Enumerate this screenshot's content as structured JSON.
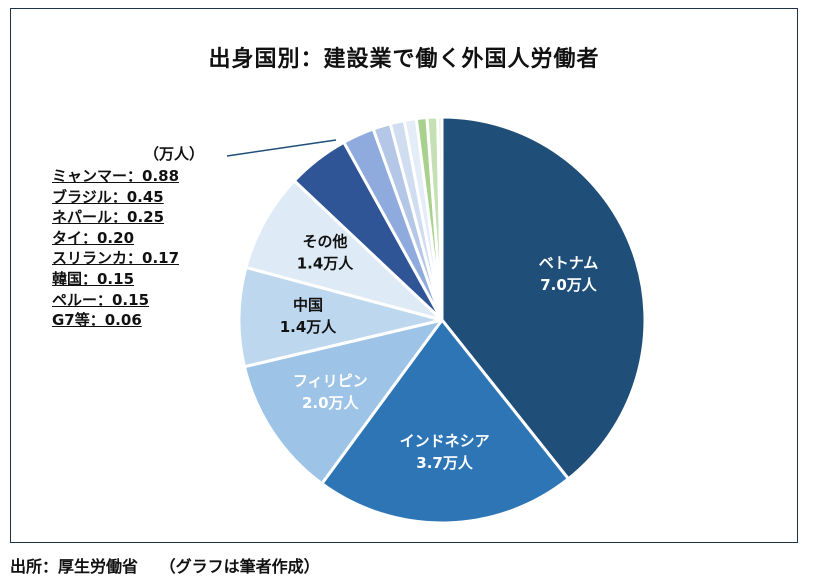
{
  "title": "出身国別：建設業で働く外国人労働者",
  "source": "出所：厚生労働省　 （グラフは筆者作成）",
  "chart_data": {
    "type": "pie",
    "unit": "（万人）",
    "slices": [
      {
        "name": "ベトナム",
        "value": 7.0,
        "label": "7.0万人",
        "color": "#1f4e79",
        "text_color": "#ffffff"
      },
      {
        "name": "インドネシア",
        "value": 3.7,
        "label": "3.7万人",
        "color": "#2e75b6",
        "text_color": "#ffffff"
      },
      {
        "name": "フィリピン",
        "value": 2.0,
        "label": "2.0万人",
        "color": "#9dc3e6",
        "text_color": "#ffffff"
      },
      {
        "name": "中国",
        "value": 1.4,
        "label": "1.4万人",
        "color": "#bdd7ee",
        "text_color": "#111111"
      },
      {
        "name": "その他",
        "value": 1.4,
        "label": "1.4万人",
        "color": "#deebf7",
        "text_color": "#111111"
      },
      {
        "name": "ミャンマー",
        "value": 0.88,
        "color": "#2f5597"
      },
      {
        "name": "ブラジル",
        "value": 0.45,
        "color": "#8faadc"
      },
      {
        "name": "ネパール",
        "value": 0.25,
        "color": "#b4c7e7"
      },
      {
        "name": "タイ",
        "value": 0.2,
        "color": "#d0dcf0"
      },
      {
        "name": "スリランカ",
        "value": 0.17,
        "color": "#e4ecf7"
      },
      {
        "name": "韓国",
        "value": 0.15,
        "color": "#a9d18e"
      },
      {
        "name": "ペルー",
        "value": 0.15,
        "color": "#c5e0b4"
      },
      {
        "name": "G7等",
        "value": 0.06,
        "color": "#e2f0d9"
      }
    ],
    "legend": [
      "ミャンマー：0.88",
      "ブラジル：0.45",
      "ネパール：0.25",
      "タイ：0.20",
      "スリランカ：0.17",
      "韓国：0.15",
      "ペルー：0.15",
      "G7等：0.06"
    ]
  }
}
